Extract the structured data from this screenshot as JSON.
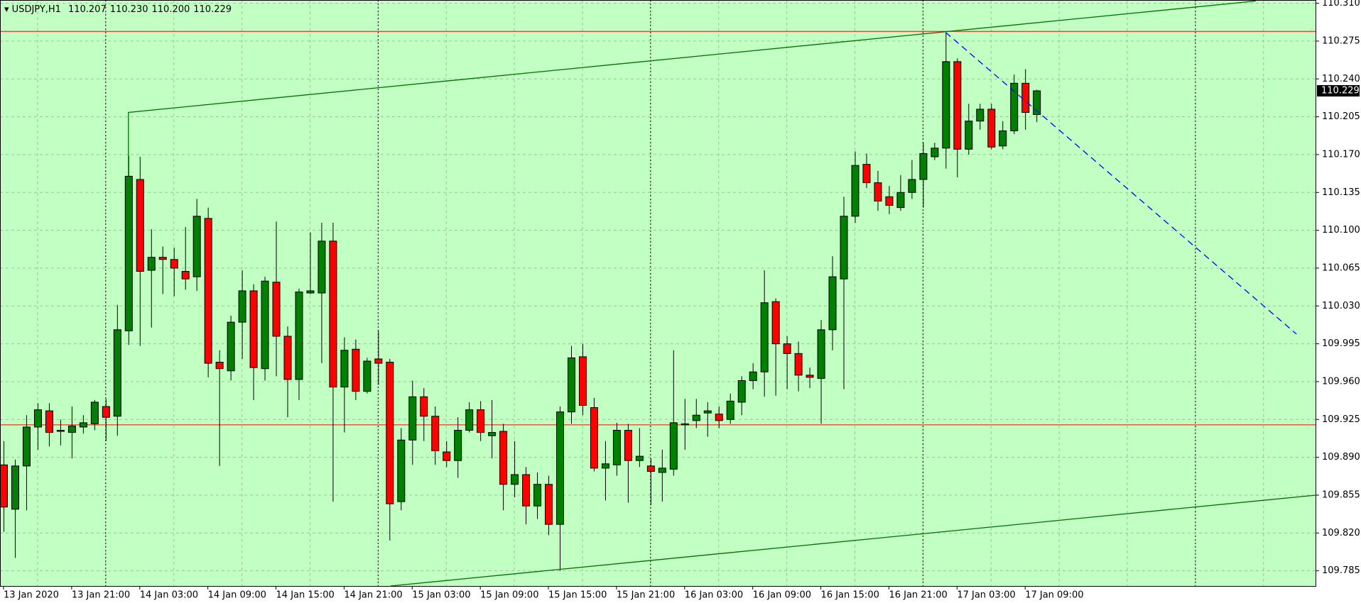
{
  "chart_data": {
    "type": "candlestick",
    "symbol": "USDJPY,H1",
    "quote_labels": [
      "110.207",
      "110.230",
      "110.200",
      "110.229"
    ],
    "up_color": "#008000",
    "down_color": "#ff0000",
    "background": "#c2ffc2",
    "grid": true,
    "categories": [
      "13 Jan 2020",
      null,
      null,
      null,
      null,
      null,
      "13 Jan 21:00",
      null,
      null,
      null,
      null,
      null,
      "14 Jan 03:00",
      null,
      null,
      null,
      null,
      null,
      "14 Jan 09:00",
      null,
      null,
      null,
      null,
      null,
      "14 Jan 15:00",
      null,
      null,
      null,
      null,
      null,
      "14 Jan 21:00",
      null,
      null,
      null,
      null,
      null,
      "15 Jan 03:00",
      null,
      null,
      null,
      null,
      null,
      "15 Jan 09:00",
      null,
      null,
      null,
      null,
      null,
      "15 Jan 15:00",
      null,
      null,
      null,
      null,
      null,
      "15 Jan 21:00",
      null,
      null,
      null,
      null,
      null,
      "16 Jan 03:00",
      null,
      null,
      null,
      null,
      null,
      "16 Jan 09:00",
      null,
      null,
      null,
      null,
      null,
      "16 Jan 15:00",
      null,
      null,
      null,
      null,
      null,
      "16 Jan 21:00",
      null,
      null,
      null,
      null,
      null,
      "17 Jan 03:00",
      null,
      null,
      null,
      null,
      null,
      "17 Jan 09:00",
      null
    ],
    "open": [
      109.883,
      109.842,
      109.882,
      109.918,
      109.933,
      109.915,
      109.913,
      109.918,
      109.921,
      109.937,
      109.928,
      110.007,
      110.147,
      110.063,
      110.075,
      110.073,
      110.062,
      110.057,
      110.111,
      109.978,
      109.97,
      110.015,
      110.044,
      109.972,
      110.052,
      110.002,
      109.962,
      110.042,
      110.042,
      110.09,
      109.955,
      109.99,
      109.951,
      109.981,
      109.978,
      109.849,
      109.906,
      109.946,
      109.928,
      109.895,
      109.887,
      109.915,
      109.934,
      109.91,
      109.914,
      109.865,
      109.874,
      109.845,
      109.865,
      109.828,
      109.932,
      109.983,
      109.936,
      109.88,
      109.883,
      109.915,
      109.887,
      109.882,
      109.876,
      109.879,
      109.92,
      109.924,
      109.931,
      109.93,
      109.925,
      109.941,
      109.961,
      109.969,
      110.034,
      109.995,
      109.986,
      109.966,
      109.963,
      110.008,
      110.055,
      110.113,
      110.161,
      110.144,
      110.131,
      110.121,
      110.135,
      110.147,
      110.168,
      110.176,
      110.256,
      110.175,
      110.201,
      110.212,
      110.178,
      110.192,
      110.236,
      110.207
    ],
    "high": [
      109.905,
      109.888,
      109.929,
      109.94,
      109.94,
      109.925,
      109.937,
      109.929,
      109.943,
      109.944,
      110.031,
      110.169,
      110.168,
      110.101,
      110.085,
      110.084,
      110.103,
      110.129,
      110.121,
      109.989,
      110.021,
      110.063,
      110.05,
      110.057,
      110.108,
      110.011,
      110.046,
      110.098,
      110.107,
      110.107,
      110.001,
      109.999,
      109.982,
      110.007,
      109.981,
      109.917,
      109.961,
      109.954,
      109.937,
      109.905,
      109.927,
      109.941,
      109.942,
      109.943,
      109.921,
      109.905,
      109.881,
      109.876,
      109.873,
      109.937,
      109.993,
      109.995,
      109.945,
      109.905,
      109.922,
      109.921,
      109.917,
      109.889,
      109.897,
      109.989,
      109.944,
      109.944,
      109.941,
      109.937,
      109.949,
      109.965,
      109.977,
      110.063,
      110.037,
      110.002,
      109.997,
      109.973,
      110.017,
      110.076,
      110.131,
      110.173,
      110.171,
      110.155,
      110.141,
      110.151,
      110.165,
      110.181,
      110.181,
      110.283,
      110.259,
      110.217,
      110.217,
      110.217,
      110.201,
      110.244,
      110.249,
      110.23
    ],
    "low": [
      109.821,
      109.797,
      109.841,
      109.897,
      109.9,
      109.901,
      109.889,
      109.912,
      109.915,
      109.905,
      109.91,
      109.994,
      109.993,
      110.01,
      110.041,
      110.039,
      110.045,
      110.044,
      109.964,
      109.882,
      109.961,
      109.981,
      109.943,
      109.961,
      109.965,
      109.927,
      109.943,
      110.041,
      109.977,
      109.849,
      109.913,
      109.943,
      109.949,
      109.957,
      109.813,
      109.841,
      109.883,
      109.905,
      109.883,
      109.881,
      109.871,
      109.913,
      109.905,
      109.889,
      109.841,
      109.853,
      109.828,
      109.833,
      109.818,
      109.785,
      109.921,
      109.929,
      109.877,
      109.85,
      109.873,
      109.848,
      109.881,
      109.846,
      109.849,
      109.873,
      109.897,
      109.917,
      109.909,
      109.917,
      109.921,
      109.929,
      109.953,
      109.946,
      109.947,
      109.953,
      109.951,
      109.954,
      109.921,
      109.989,
      109.953,
      110.107,
      110.139,
      110.118,
      110.115,
      110.118,
      110.129,
      110.121,
      110.165,
      110.157,
      110.149,
      110.17,
      110.193,
      110.175,
      110.175,
      110.189,
      110.193,
      110.2
    ],
    "close": [
      109.844,
      109.882,
      109.918,
      109.934,
      109.913,
      109.914,
      109.919,
      109.922,
      109.941,
      109.927,
      110.008,
      110.15,
      110.062,
      110.075,
      110.073,
      110.065,
      110.055,
      110.113,
      109.977,
      109.972,
      110.015,
      110.044,
      109.973,
      110.053,
      110.002,
      109.962,
      110.043,
      110.044,
      110.09,
      109.955,
      109.989,
      109.951,
      109.979,
      109.977,
      109.847,
      109.906,
      109.946,
      109.928,
      109.896,
      109.887,
      109.915,
      109.934,
      109.913,
      109.913,
      109.865,
      109.874,
      109.845,
      109.865,
      109.828,
      109.932,
      109.982,
      109.938,
      109.88,
      109.884,
      109.915,
      109.887,
      109.891,
      109.877,
      109.88,
      109.922,
      109.921,
      109.929,
      109.933,
      109.924,
      109.942,
      109.961,
      109.969,
      110.033,
      109.995,
      109.986,
      109.966,
      109.964,
      110.008,
      110.057,
      110.113,
      110.16,
      110.144,
      110.127,
      110.123,
      110.135,
      110.147,
      110.171,
      110.176,
      110.256,
      110.175,
      110.201,
      110.212,
      110.177,
      110.192,
      110.236,
      110.209,
      110.229
    ],
    "ylim": [
      109.771,
      110.313
    ],
    "yticks": [
      {
        "value": 110.31,
        "label": "110.310"
      },
      {
        "value": 110.275,
        "label": "110.275"
      },
      {
        "value": 110.24,
        "label": "110.240"
      },
      {
        "value": 110.205,
        "label": "110.205"
      },
      {
        "value": 110.17,
        "label": "110.170"
      },
      {
        "value": 110.135,
        "label": "110.135"
      },
      {
        "value": 110.1,
        "label": "110.100"
      },
      {
        "value": 110.065,
        "label": "110.065"
      },
      {
        "value": 110.03,
        "label": "110.030"
      },
      {
        "value": 109.995,
        "label": "109.995"
      },
      {
        "value": 109.96,
        "label": "109.960"
      },
      {
        "value": 109.925,
        "label": "109.925"
      },
      {
        "value": 109.89,
        "label": "109.890"
      },
      {
        "value": 109.855,
        "label": "109.855"
      },
      {
        "value": 109.82,
        "label": "109.820"
      },
      {
        "value": 109.785,
        "label": "109.785"
      }
    ],
    "hlines": [
      {
        "value": 110.284,
        "color": "#ff0000"
      },
      {
        "value": 109.92,
        "color": "#ff0000"
      }
    ],
    "trendlines": [
      {
        "color": "#007000",
        "x": [
          11,
          11,
          110.3
        ],
        "y": [
          110.15,
          110.209,
          110.312
        ]
      },
      {
        "color": "#007000",
        "x": [
          34.1,
          115.6
        ],
        "y": [
          109.771,
          109.855
        ]
      },
      {
        "color": "#0000ff",
        "dashed": true,
        "x": [
          83,
          113.9
        ],
        "y": [
          110.283,
          110.004
        ]
      }
    ]
  }
}
